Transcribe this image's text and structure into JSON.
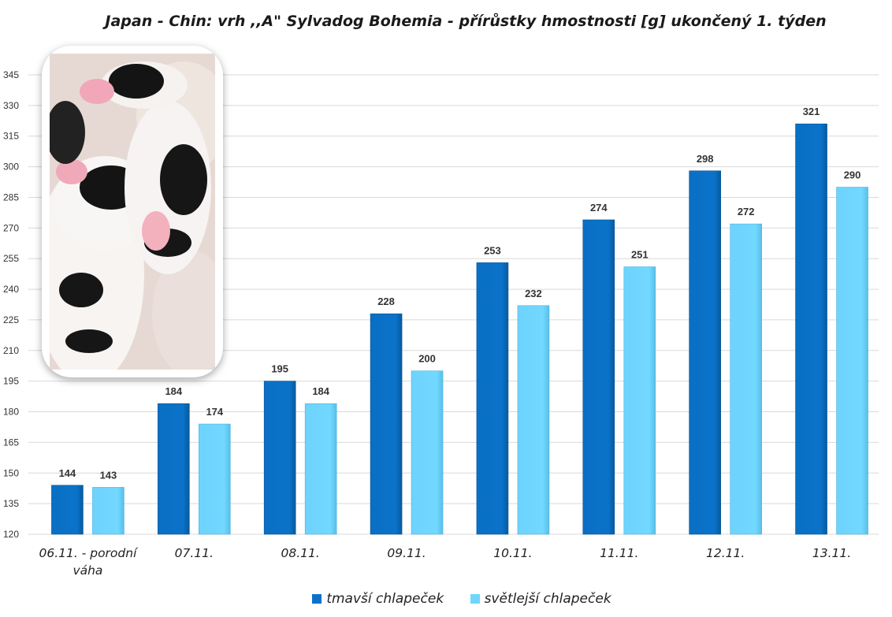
{
  "chart_data": {
    "type": "bar",
    "title": "Japan - Chin: vrh ,,A\" Sylvadog Bohemia - přírůstky hmostnosti [g] ukončený 1. týden",
    "categories": [
      "06.11. - porodní váha",
      "07.11.",
      "08.11.",
      "09.11.",
      "10.11.",
      "11.11.",
      "12.11.",
      "13.11."
    ],
    "series": [
      {
        "name": "tmavší chlapeček",
        "values": [
          144,
          184,
          195,
          228,
          253,
          274,
          298,
          321
        ],
        "color": "#0a73c9"
      },
      {
        "name": "světlejší chlapeček",
        "values": [
          143,
          174,
          184,
          200,
          232,
          251,
          272,
          290
        ],
        "color": "#6ed6ff"
      }
    ],
    "ylim": [
      120,
      345
    ],
    "yticks": [
      120,
      135,
      150,
      165,
      180,
      195,
      210,
      225,
      240,
      255,
      270,
      285,
      300,
      315,
      330,
      345
    ],
    "grid": true,
    "legend": "bottom",
    "xlabel": "",
    "ylabel": ""
  },
  "photo": {
    "subject": "puppy-photo"
  }
}
